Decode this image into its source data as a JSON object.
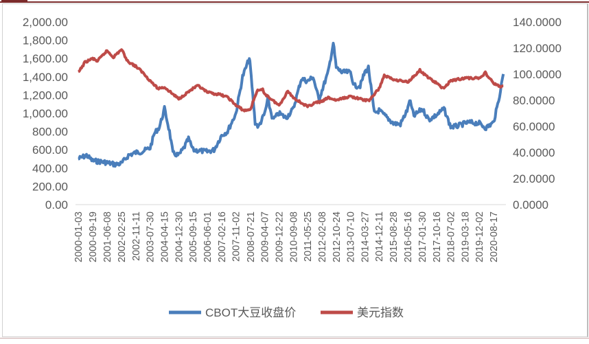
{
  "chart_data": {
    "type": "line",
    "title": "",
    "xlabel": "",
    "ylabel": "",
    "y_left_lim": [
      0,
      2000
    ],
    "y_right_lim": [
      0,
      140
    ],
    "y_left_ticks": [
      "0.00",
      "200.00",
      "400.00",
      "600.00",
      "800.00",
      "1,000.00",
      "1,200.00",
      "1,400.00",
      "1,600.00",
      "1,800.00",
      "2,000.00"
    ],
    "y_right_ticks": [
      "0.0000",
      "20.0000",
      "40.0000",
      "60.0000",
      "80.0000",
      "100.0000",
      "120.0000",
      "140.0000"
    ],
    "x_ticks": [
      "2000-01-03",
      "2000-09-19",
      "2001-06-08",
      "2002-02-25",
      "2002-11-11",
      "2003-07-30",
      "2004-04-15",
      "2004-12-30",
      "2005-09-15",
      "2006-06-01",
      "2007-02-16",
      "2007-11-02",
      "2008-07-21",
      "2009-04-07",
      "2009-12-22",
      "2010-09-08",
      "2011-05-25",
      "2012-02-08",
      "2012-10-24",
      "2013-07-10",
      "2014-03-27",
      "2014-12-11",
      "2015-08-28",
      "2016-05-16",
      "2017-01-30",
      "2017-10-16",
      "2018-07-02",
      "2019-03-18",
      "2019-12-02",
      "2020-08-17"
    ],
    "grid": false,
    "legend_position": "bottom",
    "series": [
      {
        "name": "CBOT大豆收盘价",
        "axis": "left",
        "color": "#4a7ebb",
        "points": [
          [
            "2000-01-03",
            500
          ],
          [
            "2000-06-01",
            540
          ],
          [
            "2000-09-19",
            480
          ],
          [
            "2001-03-01",
            470
          ],
          [
            "2001-06-08",
            460
          ],
          [
            "2001-11-01",
            440
          ],
          [
            "2002-02-25",
            450
          ],
          [
            "2002-07-01",
            540
          ],
          [
            "2002-11-11",
            570
          ],
          [
            "2003-03-01",
            580
          ],
          [
            "2003-07-30",
            620
          ],
          [
            "2003-10-15",
            780
          ],
          [
            "2004-01-15",
            850
          ],
          [
            "2004-04-15",
            1050
          ],
          [
            "2004-07-15",
            800
          ],
          [
            "2004-09-15",
            560
          ],
          [
            "2004-12-30",
            540
          ],
          [
            "2005-04-01",
            620
          ],
          [
            "2005-06-25",
            720
          ],
          [
            "2005-09-15",
            600
          ],
          [
            "2006-01-15",
            590
          ],
          [
            "2006-06-01",
            580
          ],
          [
            "2006-10-01",
            600
          ],
          [
            "2007-02-16",
            760
          ],
          [
            "2007-06-01",
            800
          ],
          [
            "2007-11-02",
            1000
          ],
          [
            "2008-03-01",
            1400
          ],
          [
            "2008-07-01",
            1600
          ],
          [
            "2008-07-21",
            1500
          ],
          [
            "2008-10-15",
            900
          ],
          [
            "2008-12-15",
            850
          ],
          [
            "2009-04-07",
            1000
          ],
          [
            "2009-06-01",
            1150
          ],
          [
            "2009-09-01",
            930
          ],
          [
            "2009-12-22",
            1000
          ],
          [
            "2010-05-01",
            950
          ],
          [
            "2010-09-08",
            1050
          ],
          [
            "2011-02-01",
            1380
          ],
          [
            "2011-05-25",
            1350
          ],
          [
            "2011-09-01",
            1400
          ],
          [
            "2011-12-15",
            1150
          ],
          [
            "2012-02-08",
            1250
          ],
          [
            "2012-06-01",
            1450
          ],
          [
            "2012-09-01",
            1770
          ],
          [
            "2012-10-24",
            1500
          ],
          [
            "2013-02-01",
            1450
          ],
          [
            "2013-07-10",
            1450
          ],
          [
            "2013-09-15",
            1300
          ],
          [
            "2014-01-01",
            1300
          ],
          [
            "2014-03-27",
            1450
          ],
          [
            "2014-06-01",
            1500
          ],
          [
            "2014-09-15",
            1000
          ],
          [
            "2014-12-11",
            1030
          ],
          [
            "2015-04-01",
            970
          ],
          [
            "2015-08-28",
            890
          ],
          [
            "2016-01-01",
            880
          ],
          [
            "2016-05-16",
            1050
          ],
          [
            "2016-06-15",
            1150
          ],
          [
            "2016-09-01",
            970
          ],
          [
            "2017-01-30",
            1050
          ],
          [
            "2017-06-01",
            930
          ],
          [
            "2017-10-16",
            980
          ],
          [
            "2018-03-01",
            1050
          ],
          [
            "2018-07-02",
            850
          ],
          [
            "2018-11-01",
            860
          ],
          [
            "2019-03-18",
            890
          ],
          [
            "2019-06-01",
            900
          ],
          [
            "2019-12-02",
            890
          ],
          [
            "2020-04-01",
            840
          ],
          [
            "2020-08-17",
            900
          ],
          [
            "2020-11-01",
            1100
          ],
          [
            "2020-12-20",
            1250
          ],
          [
            "2021-02-10",
            1430
          ]
        ]
      },
      {
        "name": "美元指数",
        "axis": "right",
        "color": "#be4b48",
        "points": [
          [
            "2000-01-03",
            101
          ],
          [
            "2000-05-01",
            109
          ],
          [
            "2000-09-19",
            112
          ],
          [
            "2000-12-15",
            110
          ],
          [
            "2001-06-08",
            118
          ],
          [
            "2001-10-01",
            113
          ],
          [
            "2002-02-25",
            119
          ],
          [
            "2002-06-15",
            110
          ],
          [
            "2002-11-11",
            106
          ],
          [
            "2003-03-01",
            102
          ],
          [
            "2003-07-30",
            95
          ],
          [
            "2003-12-15",
            89
          ],
          [
            "2004-04-15",
            90
          ],
          [
            "2004-12-30",
            81
          ],
          [
            "2005-04-01",
            84
          ],
          [
            "2005-09-15",
            89
          ],
          [
            "2005-12-15",
            91
          ],
          [
            "2006-06-01",
            86
          ],
          [
            "2007-02-16",
            84
          ],
          [
            "2007-06-15",
            82
          ],
          [
            "2007-11-02",
            76
          ],
          [
            "2008-04-01",
            72
          ],
          [
            "2008-07-21",
            73
          ],
          [
            "2008-11-15",
            87
          ],
          [
            "2009-03-01",
            88
          ],
          [
            "2009-04-07",
            85
          ],
          [
            "2009-12-22",
            76
          ],
          [
            "2010-06-01",
            87
          ],
          [
            "2010-09-08",
            82
          ],
          [
            "2011-05-25",
            75
          ],
          [
            "2011-10-01",
            78
          ],
          [
            "2012-02-08",
            79
          ],
          [
            "2012-06-01",
            82
          ],
          [
            "2012-10-24",
            80
          ],
          [
            "2013-07-10",
            83
          ],
          [
            "2014-03-27",
            80
          ],
          [
            "2014-06-15",
            80
          ],
          [
            "2014-12-11",
            89
          ],
          [
            "2015-03-15",
            99
          ],
          [
            "2015-08-28",
            96
          ],
          [
            "2016-05-16",
            94
          ],
          [
            "2016-12-20",
            103
          ],
          [
            "2017-01-30",
            101
          ],
          [
            "2017-10-16",
            93
          ],
          [
            "2018-02-15",
            89
          ],
          [
            "2018-07-02",
            95
          ],
          [
            "2019-03-18",
            97
          ],
          [
            "2019-12-02",
            97
          ],
          [
            "2020-03-20",
            101
          ],
          [
            "2020-08-17",
            93
          ],
          [
            "2021-01-05",
            90
          ],
          [
            "2021-02-10",
            91
          ]
        ]
      }
    ]
  }
}
